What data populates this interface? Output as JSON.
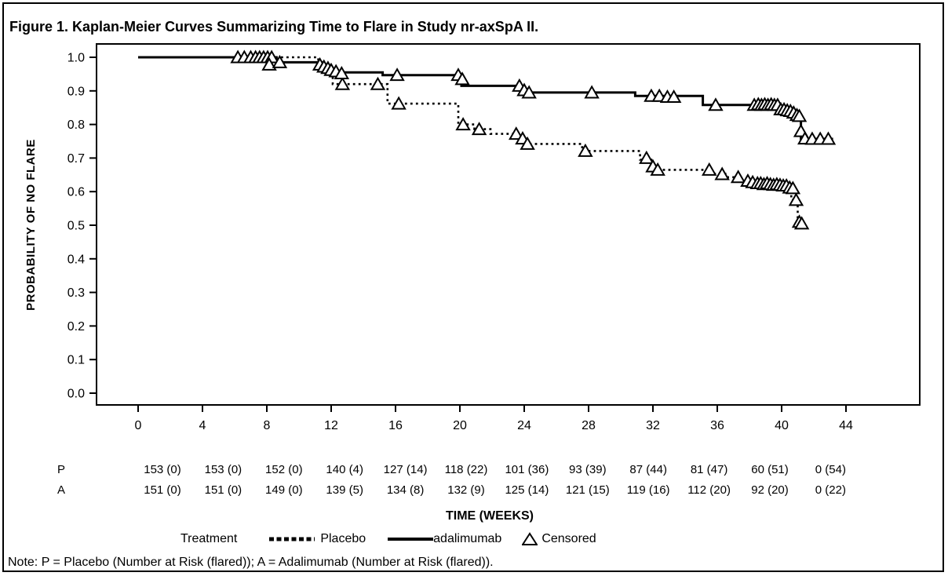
{
  "title": "Figure 1. Kaplan-Meier Curves Summarizing Time to Flare in Study nr-axSpA II.",
  "note": "Note: P = Placebo (Number at Risk (flared)); A = Adalimumab (Number at Risk (flared)).",
  "colors": {
    "foreground": "#000000",
    "background": "#ffffff"
  },
  "chart_data": {
    "type": "line",
    "subtype": "kaplan-meier-step",
    "title": "Figure 1. Kaplan-Meier Curves Summarizing Time to Flare in Study nr-axSpA II.",
    "xlabel": "TIME (WEEKS)",
    "ylabel": "PROBABILITY OF NO FLARE",
    "xlim": [
      0,
      48.5
    ],
    "ylim": [
      0.0,
      1.0
    ],
    "xticks": [
      0,
      4,
      8,
      12,
      16,
      20,
      24,
      28,
      32,
      36,
      40,
      44
    ],
    "yticks": [
      0.0,
      0.1,
      0.2,
      0.3,
      0.4,
      0.5,
      0.6,
      0.7,
      0.8,
      0.9,
      1.0
    ],
    "grid": false,
    "legend": {
      "title": "Treatment",
      "position": "bottom",
      "entries": [
        {
          "label": "Placebo",
          "style": "dotted"
        },
        {
          "label": "adalimumab",
          "style": "solid"
        },
        {
          "label": "Censored",
          "style": "open-triangle-marker"
        }
      ]
    },
    "series": [
      {
        "name": "Placebo",
        "line": "dotted",
        "steps": [
          [
            0,
            1.0
          ],
          [
            11.2,
            1.0
          ],
          [
            11.2,
            0.98
          ],
          [
            11.7,
            0.98
          ],
          [
            11.7,
            0.955
          ],
          [
            12.1,
            0.955
          ],
          [
            12.1,
            0.92
          ],
          [
            15.5,
            0.92
          ],
          [
            15.5,
            0.862
          ],
          [
            19.9,
            0.862
          ],
          [
            19.9,
            0.8
          ],
          [
            20.9,
            0.8
          ],
          [
            20.9,
            0.786
          ],
          [
            21.9,
            0.786
          ],
          [
            21.9,
            0.772
          ],
          [
            23.4,
            0.772
          ],
          [
            23.4,
            0.756
          ],
          [
            23.9,
            0.756
          ],
          [
            23.9,
            0.742
          ],
          [
            27.6,
            0.742
          ],
          [
            27.6,
            0.721
          ],
          [
            31.2,
            0.721
          ],
          [
            31.2,
            0.695
          ],
          [
            31.9,
            0.695
          ],
          [
            31.9,
            0.665
          ],
          [
            35.3,
            0.665
          ],
          [
            35.3,
            0.653
          ],
          [
            36.5,
            0.653
          ],
          [
            36.5,
            0.643
          ],
          [
            37.4,
            0.643
          ],
          [
            37.4,
            0.63
          ],
          [
            38.0,
            0.63
          ],
          [
            38.0,
            0.62
          ],
          [
            40.6,
            0.62
          ],
          [
            40.6,
            0.575
          ],
          [
            41.0,
            0.575
          ],
          [
            41.0,
            0.505
          ],
          [
            41.5,
            0.505
          ]
        ],
        "censored": [
          [
            12.7,
            0.92
          ],
          [
            14.9,
            0.92
          ],
          [
            16.2,
            0.862
          ],
          [
            20.2,
            0.8
          ],
          [
            21.2,
            0.786
          ],
          [
            23.5,
            0.772
          ],
          [
            23.9,
            0.758
          ],
          [
            24.2,
            0.742
          ],
          [
            27.8,
            0.721
          ],
          [
            31.6,
            0.7
          ],
          [
            32.0,
            0.675
          ],
          [
            32.3,
            0.665
          ],
          [
            35.5,
            0.665
          ],
          [
            36.3,
            0.652
          ],
          [
            37.3,
            0.643
          ],
          [
            37.9,
            0.632
          ],
          [
            38.2,
            0.628
          ],
          [
            38.5,
            0.625
          ],
          [
            38.7,
            0.625
          ],
          [
            38.9,
            0.622
          ],
          [
            39.1,
            0.625
          ],
          [
            39.3,
            0.622
          ],
          [
            39.5,
            0.62
          ],
          [
            39.7,
            0.622
          ],
          [
            39.9,
            0.62
          ],
          [
            40.1,
            0.618
          ],
          [
            40.3,
            0.618
          ],
          [
            40.5,
            0.612
          ],
          [
            40.7,
            0.61
          ],
          [
            40.9,
            0.575
          ],
          [
            41.1,
            0.51
          ],
          [
            41.25,
            0.505
          ]
        ]
      },
      {
        "name": "adalimumab",
        "line": "solid",
        "steps": [
          [
            0,
            1.0
          ],
          [
            8.6,
            1.0
          ],
          [
            8.6,
            0.985
          ],
          [
            11.4,
            0.985
          ],
          [
            11.4,
            0.975
          ],
          [
            11.8,
            0.975
          ],
          [
            11.8,
            0.965
          ],
          [
            12.2,
            0.965
          ],
          [
            12.2,
            0.955
          ],
          [
            15.2,
            0.955
          ],
          [
            15.2,
            0.947
          ],
          [
            20.1,
            0.947
          ],
          [
            20.1,
            0.915
          ],
          [
            23.9,
            0.915
          ],
          [
            23.9,
            0.895
          ],
          [
            30.9,
            0.895
          ],
          [
            30.9,
            0.885
          ],
          [
            35.1,
            0.885
          ],
          [
            35.1,
            0.858
          ],
          [
            39.7,
            0.858
          ],
          [
            39.7,
            0.842
          ],
          [
            40.8,
            0.842
          ],
          [
            40.8,
            0.825
          ],
          [
            41.2,
            0.825
          ],
          [
            41.2,
            0.757
          ],
          [
            43.2,
            0.757
          ]
        ],
        "censored": [
          [
            6.2,
            1.0
          ],
          [
            6.6,
            1.0
          ],
          [
            7.0,
            1.0
          ],
          [
            7.3,
            1.0
          ],
          [
            7.55,
            1.0
          ],
          [
            7.8,
            1.0
          ],
          [
            8.05,
            1.0
          ],
          [
            8.3,
            1.0
          ],
          [
            8.15,
            0.978
          ],
          [
            8.8,
            0.985
          ],
          [
            11.3,
            0.978
          ],
          [
            11.55,
            0.972
          ],
          [
            11.8,
            0.968
          ],
          [
            12.0,
            0.962
          ],
          [
            12.3,
            0.958
          ],
          [
            12.65,
            0.952
          ],
          [
            16.1,
            0.947
          ],
          [
            19.9,
            0.947
          ],
          [
            20.15,
            0.935
          ],
          [
            23.7,
            0.915
          ],
          [
            24.0,
            0.902
          ],
          [
            24.3,
            0.895
          ],
          [
            28.2,
            0.895
          ],
          [
            31.9,
            0.885
          ],
          [
            32.4,
            0.885
          ],
          [
            32.9,
            0.882
          ],
          [
            33.3,
            0.882
          ],
          [
            35.9,
            0.858
          ],
          [
            38.3,
            0.858
          ],
          [
            38.55,
            0.86
          ],
          [
            38.75,
            0.858
          ],
          [
            38.95,
            0.86
          ],
          [
            39.15,
            0.858
          ],
          [
            39.35,
            0.86
          ],
          [
            39.55,
            0.858
          ],
          [
            39.75,
            0.858
          ],
          [
            39.95,
            0.845
          ],
          [
            40.15,
            0.845
          ],
          [
            40.35,
            0.842
          ],
          [
            40.55,
            0.84
          ],
          [
            40.75,
            0.835
          ],
          [
            40.95,
            0.828
          ],
          [
            41.1,
            0.825
          ],
          [
            41.2,
            0.78
          ],
          [
            41.45,
            0.758
          ],
          [
            41.9,
            0.757
          ],
          [
            42.4,
            0.757
          ],
          [
            42.9,
            0.757
          ]
        ]
      }
    ],
    "number_at_risk": {
      "timepoints": [
        0,
        4,
        8,
        12,
        16,
        20,
        24,
        28,
        32,
        36,
        40,
        44
      ],
      "rows": [
        {
          "label": "P",
          "values": [
            "153 (0)",
            "153 (0)",
            "152 (0)",
            "140 (4)",
            "127 (14)",
            "118 (22)",
            "101 (36)",
            "93 (39)",
            "87 (44)",
            "81 (47)",
            "60 (51)",
            "0 (54)"
          ]
        },
        {
          "label": "A",
          "values": [
            "151 (0)",
            "151 (0)",
            "149 (0)",
            "139 (5)",
            "134 (8)",
            "132 (9)",
            "125 (14)",
            "121 (15)",
            "119 (16)",
            "112 (20)",
            "92 (20)",
            "0 (22)"
          ]
        }
      ]
    }
  }
}
